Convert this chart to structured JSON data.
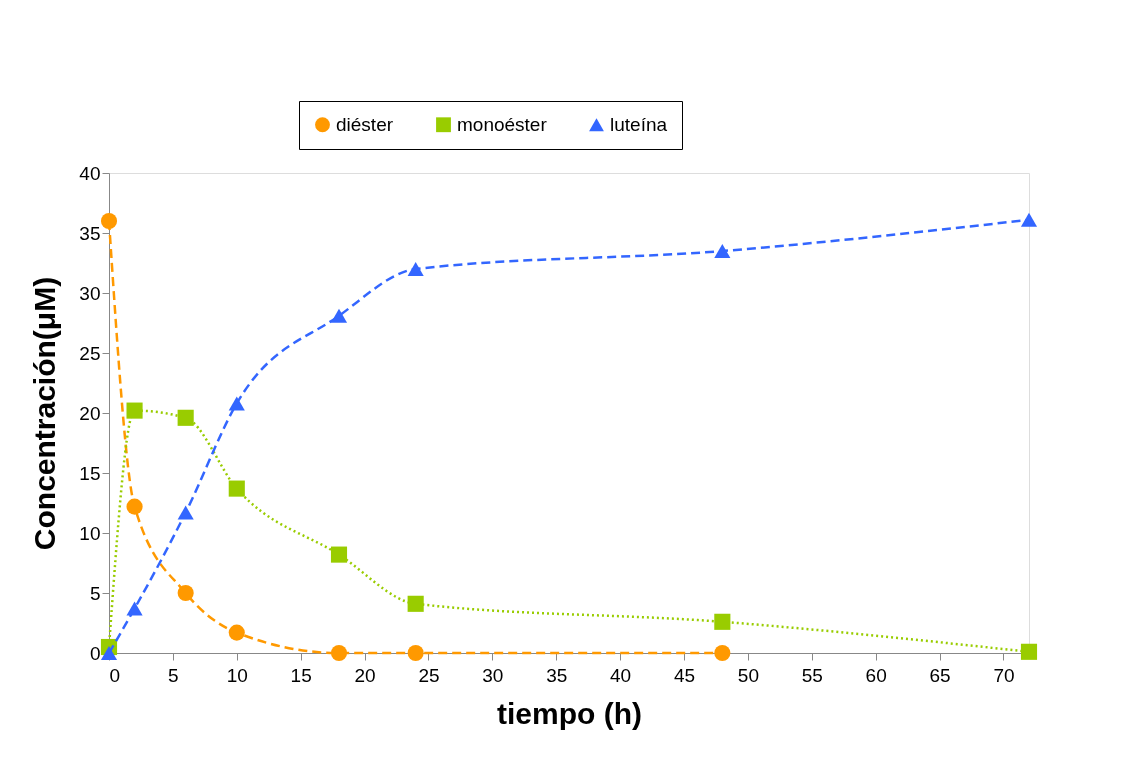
{
  "chart_data": {
    "type": "line",
    "xlabel": "tiempo (h)",
    "ylabel": "Concentración(μM)",
    "x": [
      0,
      2,
      6,
      10,
      18,
      24,
      48,
      72
    ],
    "series": [
      {
        "name": "diéster",
        "color": "#ff9900",
        "marker": "circle",
        "line_style": "dashed",
        "values": [
          36,
          12.2,
          5,
          1.7,
          0,
          0,
          0,
          null
        ]
      },
      {
        "name": "monoéster",
        "color": "#99cc00",
        "marker": "square",
        "line_style": "dotted",
        "values": [
          0.5,
          20.2,
          19.6,
          13.7,
          8.2,
          4.1,
          2.6,
          0.1
        ]
      },
      {
        "name": "luteína",
        "color": "#3366ff",
        "marker": "triangle",
        "line_style": "dashed",
        "values": [
          0,
          3.7,
          11.7,
          20.8,
          28.1,
          32,
          33.5,
          36.1
        ]
      }
    ],
    "xlim": [
      0,
      72
    ],
    "xticks": [
      0,
      5,
      10,
      15,
      20,
      25,
      30,
      35,
      40,
      45,
      50,
      55,
      60,
      65,
      70
    ],
    "ylim": [
      0,
      40
    ],
    "yticks": [
      0,
      5,
      10,
      15,
      20,
      25,
      30,
      35,
      40
    ],
    "grid": false,
    "legend": "top"
  }
}
